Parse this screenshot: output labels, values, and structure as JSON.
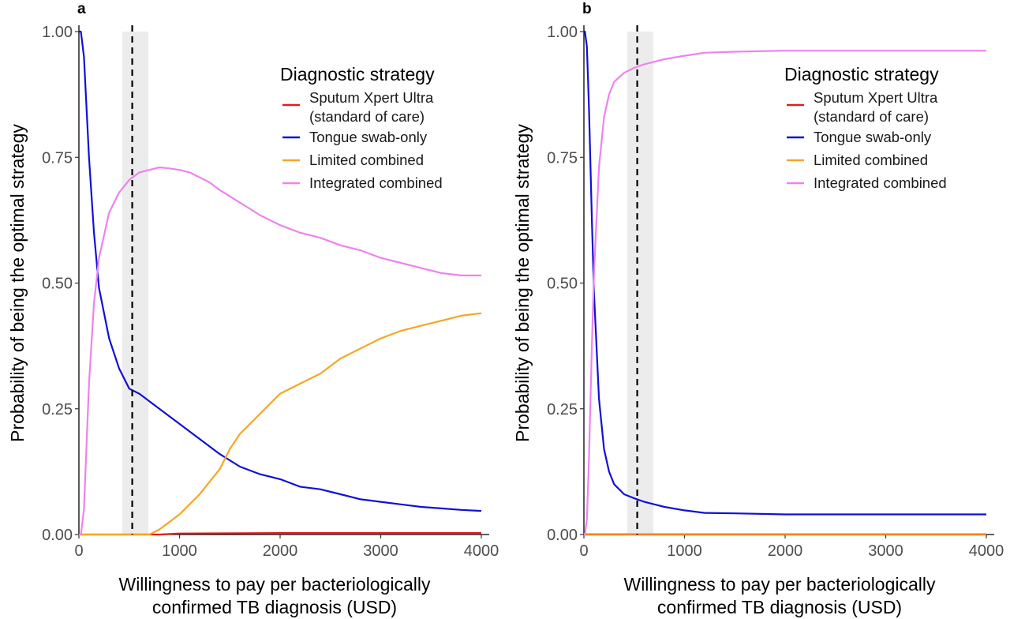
{
  "chart_data": [
    {
      "type": "line",
      "panel": "a",
      "xlabel": [
        "Willingness to pay per bacteriologically",
        "confirmed TB diagnosis (USD)"
      ],
      "ylabel": "Probability of being the optimal strategy",
      "xlim": [
        0,
        4000
      ],
      "ylim": [
        0,
        1
      ],
      "x_ticks": [
        "0",
        "1000",
        "2000",
        "3000",
        "4000"
      ],
      "y_ticks": [
        "0.00",
        "0.25",
        "0.50",
        "0.75",
        "1.00"
      ],
      "reference_line_x": 530,
      "shaded_band_x": [
        430,
        690
      ],
      "grid": false,
      "legend": {
        "title": "Diagnostic strategy",
        "position": "top-right",
        "entries": [
          {
            "label": [
              "Sputum Xpert Ultra",
              "(standard of care)"
            ],
            "color": "#e41a1c"
          },
          {
            "label": [
              "Tongue swab-only"
            ],
            "color": "#1010d8"
          },
          {
            "label": [
              "Limited combined"
            ],
            "color": "#f5a623"
          },
          {
            "label": [
              "Integrated combined"
            ],
            "color": "#ee82ee"
          }
        ]
      },
      "series": [
        {
          "name": "Sputum Xpert Ultra (standard of care)",
          "color": "#e41a1c",
          "x": [
            0,
            800,
            1000,
            2000,
            3000,
            4000
          ],
          "y": [
            0,
            0,
            0.002,
            0.003,
            0.003,
            0.003
          ]
        },
        {
          "name": "Tongue swab-only",
          "color": "#1010d8",
          "x": [
            0,
            20,
            50,
            100,
            150,
            200,
            300,
            400,
            500,
            600,
            700,
            800,
            1000,
            1200,
            1400,
            1600,
            1800,
            2000,
            2200,
            2400,
            2600,
            2800,
            3000,
            3200,
            3400,
            3600,
            3800,
            4000
          ],
          "y": [
            1.0,
            1.0,
            0.95,
            0.75,
            0.6,
            0.49,
            0.39,
            0.33,
            0.29,
            0.28,
            0.265,
            0.25,
            0.22,
            0.19,
            0.16,
            0.135,
            0.12,
            0.11,
            0.095,
            0.09,
            0.08,
            0.07,
            0.065,
            0.06,
            0.055,
            0.052,
            0.049,
            0.047
          ]
        },
        {
          "name": "Limited combined",
          "color": "#f5a623",
          "x": [
            0,
            700,
            800,
            1000,
            1200,
            1400,
            1500,
            1600,
            1800,
            2000,
            2200,
            2400,
            2600,
            2800,
            3000,
            3200,
            3400,
            3600,
            3800,
            4000
          ],
          "y": [
            0,
            0,
            0.01,
            0.04,
            0.08,
            0.13,
            0.17,
            0.2,
            0.24,
            0.28,
            0.3,
            0.32,
            0.35,
            0.37,
            0.39,
            0.405,
            0.415,
            0.425,
            0.435,
            0.44
          ]
        },
        {
          "name": "Integrated combined",
          "color": "#ee82ee",
          "x": [
            0,
            20,
            50,
            100,
            150,
            200,
            300,
            400,
            500,
            600,
            700,
            800,
            900,
            1000,
            1100,
            1200,
            1300,
            1400,
            1600,
            1800,
            2000,
            2200,
            2400,
            2600,
            2800,
            3000,
            3200,
            3400,
            3600,
            3800,
            4000
          ],
          "y": [
            0,
            0,
            0.05,
            0.3,
            0.46,
            0.55,
            0.64,
            0.68,
            0.705,
            0.72,
            0.725,
            0.73,
            0.728,
            0.725,
            0.72,
            0.71,
            0.7,
            0.685,
            0.66,
            0.635,
            0.615,
            0.6,
            0.59,
            0.575,
            0.565,
            0.55,
            0.54,
            0.53,
            0.52,
            0.515,
            0.515
          ]
        }
      ]
    },
    {
      "type": "line",
      "panel": "b",
      "xlabel": [
        "Willingness to pay per bacteriologically",
        "confirmed TB diagnosis (USD)"
      ],
      "ylabel": "Probability of being the optimal strategy",
      "xlim": [
        0,
        4000
      ],
      "ylim": [
        0,
        1
      ],
      "x_ticks": [
        "0",
        "1000",
        "2000",
        "3000",
        "4000"
      ],
      "y_ticks": [
        "0.00",
        "0.25",
        "0.50",
        "0.75",
        "1.00"
      ],
      "reference_line_x": 530,
      "shaded_band_x": [
        430,
        690
      ],
      "grid": false,
      "legend": {
        "title": "Diagnostic strategy",
        "position": "top-right",
        "entries": [
          {
            "label": [
              "Sputum Xpert Ultra",
              "(standard of care)"
            ],
            "color": "#e41a1c"
          },
          {
            "label": [
              "Tongue swab-only"
            ],
            "color": "#1010d8"
          },
          {
            "label": [
              "Limited combined"
            ],
            "color": "#f5a623"
          },
          {
            "label": [
              "Integrated combined"
            ],
            "color": "#ee82ee"
          }
        ]
      },
      "series": [
        {
          "name": "Sputum Xpert Ultra (standard of care)",
          "color": "#e41a1c",
          "x": [
            0,
            4000
          ],
          "y": [
            0,
            0
          ]
        },
        {
          "name": "Tongue swab-only",
          "color": "#1010d8",
          "x": [
            0,
            10,
            30,
            50,
            80,
            100,
            150,
            200,
            250,
            300,
            400,
            500,
            600,
            700,
            800,
            1000,
            1200,
            1500,
            2000,
            3000,
            4000
          ],
          "y": [
            1.0,
            1.0,
            0.97,
            0.85,
            0.62,
            0.48,
            0.27,
            0.17,
            0.125,
            0.1,
            0.08,
            0.072,
            0.065,
            0.06,
            0.055,
            0.048,
            0.043,
            0.042,
            0.04,
            0.04,
            0.04
          ]
        },
        {
          "name": "Limited combined",
          "color": "#f5a623",
          "x": [
            0,
            4000
          ],
          "y": [
            0.001,
            0.001
          ]
        },
        {
          "name": "Integrated combined",
          "color": "#ee82ee",
          "x": [
            0,
            10,
            30,
            50,
            80,
            100,
            150,
            200,
            250,
            300,
            400,
            500,
            600,
            700,
            800,
            1000,
            1200,
            1500,
            2000,
            3000,
            4000
          ],
          "y": [
            0,
            0,
            0.03,
            0.15,
            0.38,
            0.52,
            0.73,
            0.83,
            0.875,
            0.9,
            0.918,
            0.928,
            0.935,
            0.94,
            0.945,
            0.952,
            0.958,
            0.96,
            0.962,
            0.962,
            0.962
          ]
        }
      ]
    }
  ]
}
